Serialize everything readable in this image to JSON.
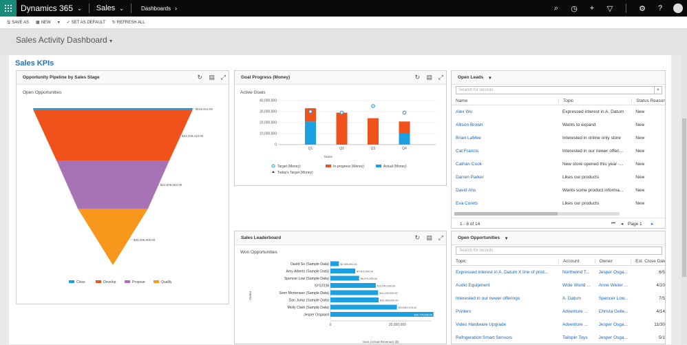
{
  "topbar": {
    "app": "Dynamics 365",
    "area": "Sales",
    "crumb": "Dashboards"
  },
  "commands": {
    "save_as": "SAVE AS",
    "new": "NEW",
    "set_default": "SET AS DEFAULT",
    "refresh": "REFRESH ALL"
  },
  "dashboard": {
    "title": "Sales Activity Dashboard",
    "section": "Sales KPIs"
  },
  "pipeline": {
    "title": "Opportunity Pipeline by Sales Stage",
    "subtitle": "Open Opportunities",
    "labels": [
      "$103,814.00",
      "$23,228,410.00",
      "$22,606,053.00",
      "$28,288,809.00"
    ],
    "legend": [
      "Close",
      "Develop",
      "Propose",
      "Qualify"
    ],
    "colors": [
      "#1ba1e2",
      "#f0521b",
      "#a873b5",
      "#f7981c"
    ]
  },
  "goal": {
    "title": "Goal Progress (Money)",
    "subtitle": "Active Goals",
    "xlabel": "Name",
    "legend": [
      "Target (Money)",
      "In-progress (Money)",
      "Actual (Money)",
      "Today's Target (Money)"
    ]
  },
  "leaderboard": {
    "title": "Sales Leaderboard",
    "subtitle": "Won Opportunities",
    "ylabel": "Owner",
    "xlabel": "Sum (Actual Revenue) ($)"
  },
  "leads": {
    "title": "Open Leads",
    "search": "Search for records",
    "headers": [
      "Name",
      "Topic",
      "Status Reason"
    ],
    "rows": [
      [
        "Alex Wu",
        "Expressed interest in A. Datum",
        "New"
      ],
      [
        "Allison Brown",
        "Wants to expand",
        "New"
      ],
      [
        "Brian LaMee",
        "Interested in online only store",
        "New"
      ],
      [
        "Cat Francis",
        "Interested in our newer offeri...",
        "New"
      ],
      [
        "Cathan Cook",
        "New store opened this year -...",
        "New"
      ],
      [
        "Darren Parker",
        "Likes our products",
        "New"
      ],
      [
        "David Ahs",
        "Wants some product informa...",
        "New"
      ],
      [
        "Eva Corets",
        "Likes our products",
        "New"
      ]
    ],
    "count": "1 - 8 of 14",
    "page": "Page 1"
  },
  "opps": {
    "title": "Open Opportunities",
    "search": "Search for records",
    "headers": [
      "Topic",
      "Account",
      "Owner",
      "Est. Close Date"
    ],
    "rows": [
      [
        "Expressed interest in A. Datum X line of print...",
        "Northwind T...",
        "Jesper Osga...",
        "6/5"
      ],
      [
        "Audio Equipment",
        "Wide World ...",
        "Anne Weiler ...",
        "4/20"
      ],
      [
        "Interested in our newer offerings",
        "A. Datum",
        "Spencer Low...",
        "7/5"
      ],
      [
        "Printers",
        "Adventure ...",
        "Christa Gelle...",
        "4/14"
      ],
      [
        "Video Hardware Upgrade",
        "Adventure ...",
        "Jesper Osga...",
        "11/30"
      ],
      [
        "Refrigeration Smart Sensors",
        "Tailspin Toys",
        "Jesper Osga...",
        "5/1"
      ]
    ]
  },
  "chart_data": [
    {
      "type": "funnel",
      "title": "Opportunity Pipeline by Sales Stage",
      "subtitle": "Open Opportunities",
      "categories": [
        "Close",
        "Develop",
        "Propose",
        "Qualify"
      ],
      "values": [
        103814,
        23228410,
        22606053,
        28288809
      ]
    },
    {
      "type": "bar",
      "title": "Goal Progress (Money)",
      "subtitle": "Active Goals",
      "xlabel": "Name",
      "categories": [
        "Q1",
        "Q2",
        "Q3",
        "Q4"
      ],
      "ylim": [
        0,
        40000000
      ],
      "yticks": [
        "0",
        "10,000,000",
        "20,000,000",
        "30,000,000",
        "40,000,000"
      ],
      "series": [
        {
          "name": "Actual (Money)",
          "values": [
            21000000,
            0,
            0,
            10000000
          ]
        },
        {
          "name": "In-progress (Money)",
          "values": [
            12000000,
            29000000,
            24000000,
            11000000
          ]
        },
        {
          "name": "Target (Money)",
          "values": [
            30000000,
            29000000,
            35000000,
            29000000
          ]
        }
      ]
    },
    {
      "type": "bar",
      "orientation": "horizontal",
      "title": "Sales Leaderboard",
      "subtitle": "Won Opportunities",
      "ylabel": "Owner",
      "xlabel": "Sum (Actual Revenue) ($)",
      "xticks": [
        "0",
        "20,000,000"
      ],
      "xlim": [
        0,
        30000000
      ],
      "categories": [
        "David So (Sample Data)",
        "Amy Alberts (Sample Data)",
        "Spencer Low (Sample Data)",
        "SYSTEM",
        "Sven Mortensen (Sample Data)",
        "Dan Jump (Sample Data)",
        "Molly Clark (Sample Data)",
        "Jesper Osgaard"
      ],
      "values": [
        2530000,
        7402000,
        8570000,
        13540000,
        14230000,
        14389000,
        19849578,
        30776000
      ],
      "labels": [
        "$2,530,000.00",
        "$7,402,000.00",
        "$8,570,000.00",
        "$13,540,000.00",
        "$14,230,000.00",
        "$14,389,000.00",
        "$19,849,578.00",
        "$30,776,000.00"
      ]
    }
  ]
}
